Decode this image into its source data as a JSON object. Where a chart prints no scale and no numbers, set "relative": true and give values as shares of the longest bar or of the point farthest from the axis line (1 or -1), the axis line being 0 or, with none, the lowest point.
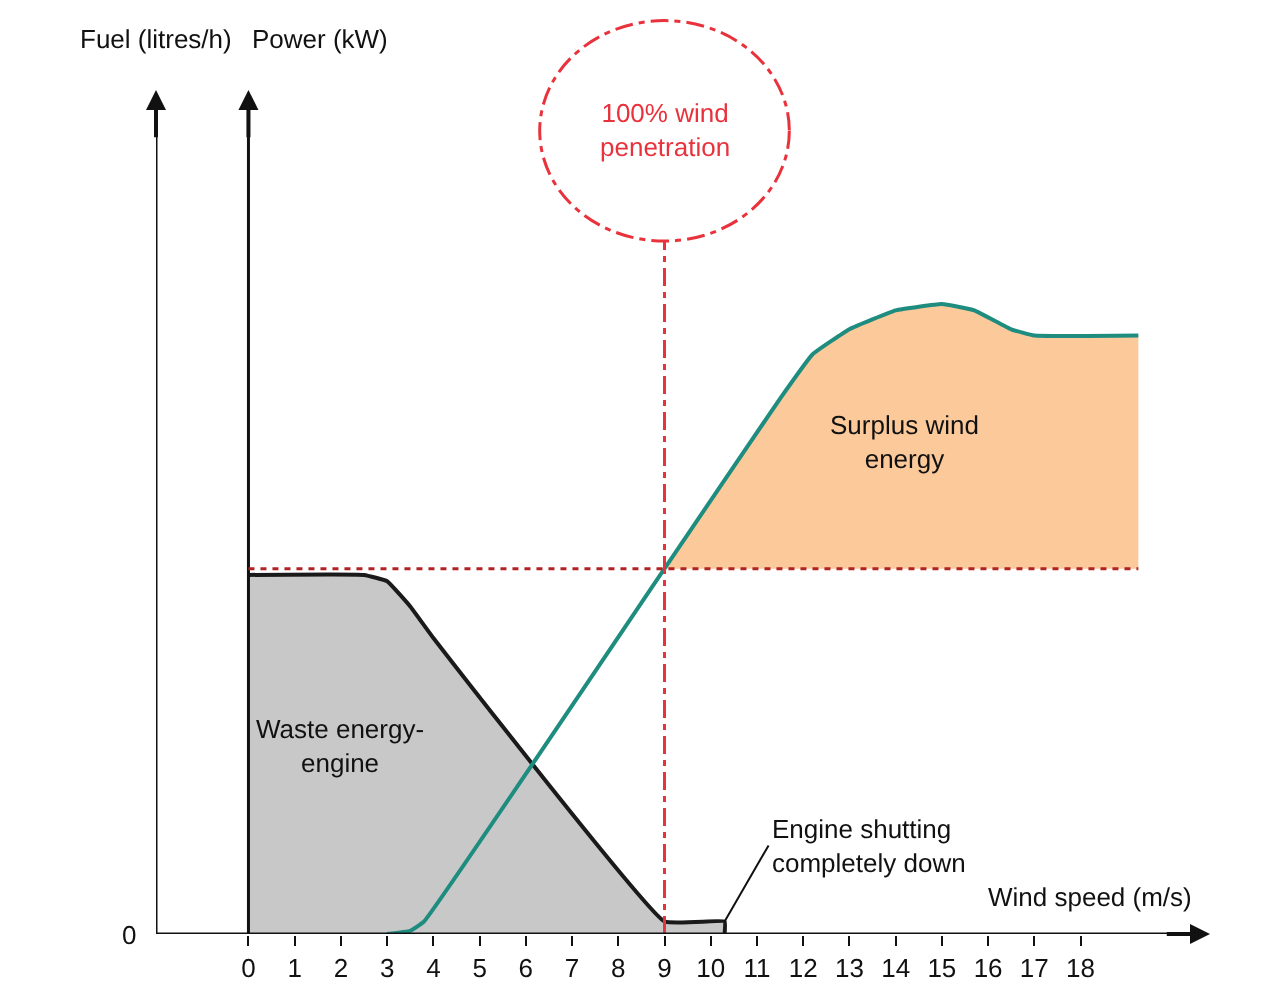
{
  "chart_data": {
    "type": "line",
    "relative": true,
    "xlabel": "Wind speed (m/s)",
    "xlim": [
      -2,
      20.8
    ],
    "xticks": [
      0,
      1,
      2,
      3,
      4,
      5,
      6,
      7,
      8,
      9,
      10,
      11,
      12,
      13,
      14,
      15,
      16,
      17,
      18
    ],
    "grid": false,
    "marker": "none",
    "series": [
      {
        "type": "area",
        "color": "#c8c8c8",
        "x": [
          0,
          2.5,
          3,
          3.5,
          4,
          9,
          10.3,
          10.3
        ],
        "values": [
          0.57,
          0.57,
          0.56,
          0.52,
          0.47,
          0.02,
          0.02,
          0
        ]
      },
      {
        "type": "area",
        "color": "#fbc99a",
        "x": [
          9,
          11.5,
          12.2,
          13,
          14,
          15,
          15.7,
          16.5,
          17,
          19.25
        ],
        "values": [
          0.58,
          0.85,
          0.92,
          0.96,
          0.99,
          1,
          0.99,
          0.96,
          0.95,
          0.95
        ]
      },
      {
        "color": "#1e8c7e",
        "x": [
          3,
          3.5,
          3.8,
          9,
          11.5,
          12.2,
          13,
          14,
          15,
          15.7,
          16.5,
          17,
          19.25
        ],
        "values": [
          0,
          0.005,
          0.02,
          0.58,
          0.85,
          0.92,
          0.96,
          0.99,
          1,
          0.99,
          0.96,
          0.95,
          0.95
        ]
      }
    ],
    "ref_lines": [
      {
        "axis": "x",
        "value": 9,
        "label": "100% wind penetration",
        "color": "#e8323c",
        "line_style": "dashed"
      },
      {
        "axis": "y",
        "value": 0.58,
        "color": "#b22222",
        "line_style": "dotted"
      }
    ],
    "annotations": [
      "Fuel (litres/h)",
      "Power (kW)",
      "Waste energy-\nengine",
      "Surplus wind\nenergy",
      {
        "text": "Engine shutting\ncompletely down",
        "x": 10.3,
        "y": 0.02
      },
      "0"
    ]
  }
}
